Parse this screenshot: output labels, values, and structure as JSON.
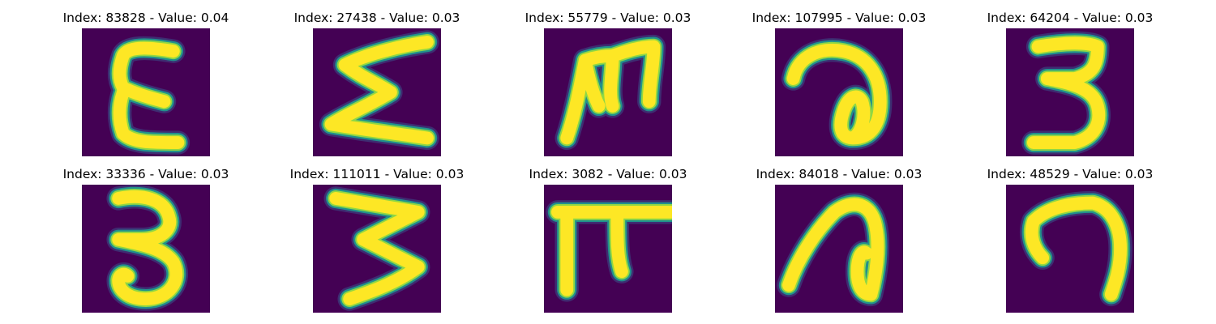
{
  "colors": {
    "background": "#440154",
    "stroke_core": "#fde725",
    "stroke_mid": "#8fd744",
    "stroke_edge": "#21918c",
    "stroke_outer": "#3b528b"
  },
  "panels": [
    {
      "title": "Index: 83828 - Value: 0.04",
      "glyph": "ε"
    },
    {
      "title": "Index: 27438 - Value: 0.03",
      "glyph": "Σ"
    },
    {
      "title": "Index: 55779 - Value: 0.03",
      "glyph": "ш"
    },
    {
      "title": "Index: 107995 - Value: 0.03",
      "glyph": "∂"
    },
    {
      "title": "Index: 64204 - Value: 0.03",
      "glyph": "3"
    },
    {
      "title": "Index: 33336 - Value: 0.03",
      "glyph": "3"
    },
    {
      "title": "Index: 111011 - Value: 0.03",
      "glyph": "3"
    },
    {
      "title": "Index: 3082 - Value: 0.03",
      "glyph": "π"
    },
    {
      "title": "Index: 84018 - Value: 0.03",
      "glyph": "∂"
    },
    {
      "title": "Index: 48529 - Value: 0.03",
      "glyph": "⊃"
    }
  ]
}
